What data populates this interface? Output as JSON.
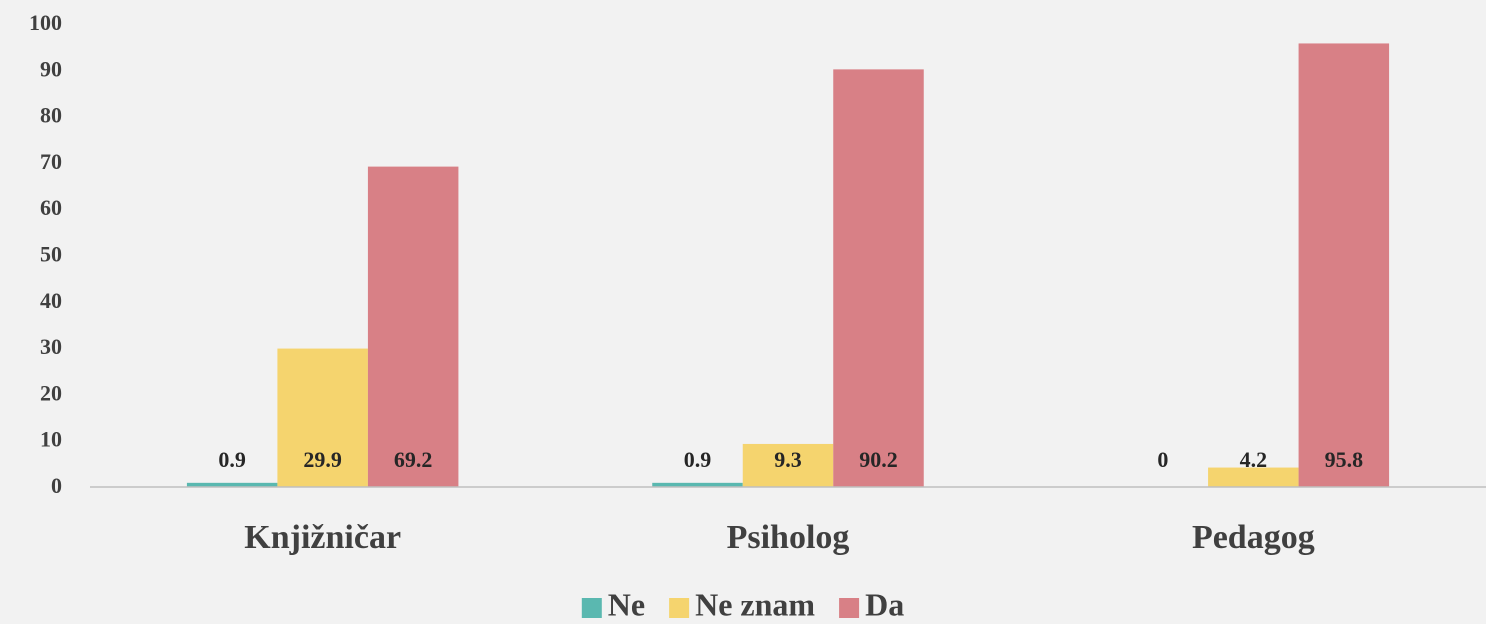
{
  "chart_data": {
    "type": "bar",
    "categories": [
      "Knjižničar",
      "Psiholog",
      "Pedagog"
    ],
    "series": [
      {
        "name": "Ne",
        "color": "#5ab8b0",
        "values": [
          0.9,
          0.9,
          0
        ]
      },
      {
        "name": "Ne znam",
        "color": "#f5d46e",
        "values": [
          29.9,
          9.3,
          4.2
        ]
      },
      {
        "name": "Da",
        "color": "#d88086",
        "values": [
          69.2,
          90.2,
          95.8
        ]
      }
    ],
    "ylim": [
      0,
      100
    ],
    "yticks": [
      0,
      10,
      20,
      30,
      40,
      50,
      60,
      70,
      80,
      90,
      100
    ],
    "grid": false,
    "legend": "bottom"
  }
}
